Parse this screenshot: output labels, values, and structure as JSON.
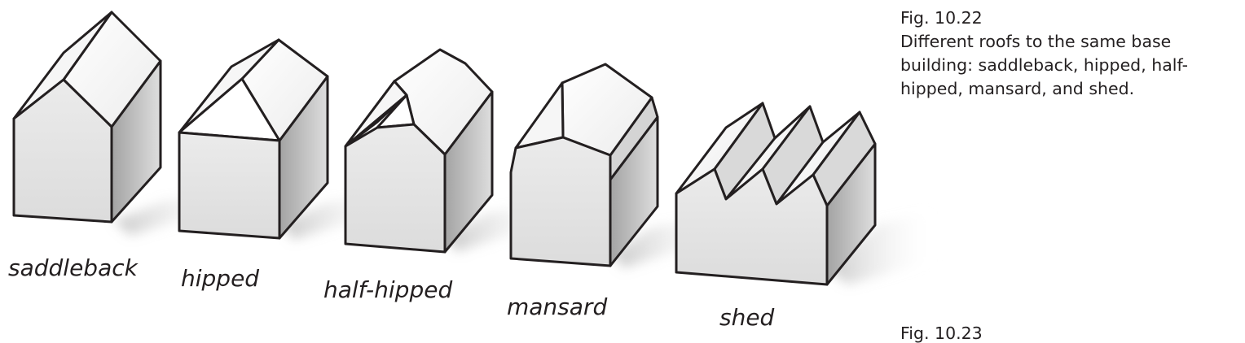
{
  "caption": {
    "figure_number": "Fig. 10.22",
    "lines": [
      "Different roofs to the same base",
      "building: saddleback, hipped, half-",
      "hipped, mansard, and shed."
    ]
  },
  "roof_types": [
    {
      "id": "saddleback",
      "label": "saddleback"
    },
    {
      "id": "hipped",
      "label": "hipped"
    },
    {
      "id": "half-hipped",
      "label": "half-hipped"
    },
    {
      "id": "mansard",
      "label": "mansard"
    },
    {
      "id": "shed",
      "label": "shed"
    }
  ],
  "next_figure_cut": "Fig. 10.23",
  "colors": {
    "outline": "#231f20",
    "front_face": "#e5e5e5",
    "roof_light": "#ffffff",
    "roof_mid": "#f1f1f1",
    "side_dark": "#8c8c8c"
  }
}
